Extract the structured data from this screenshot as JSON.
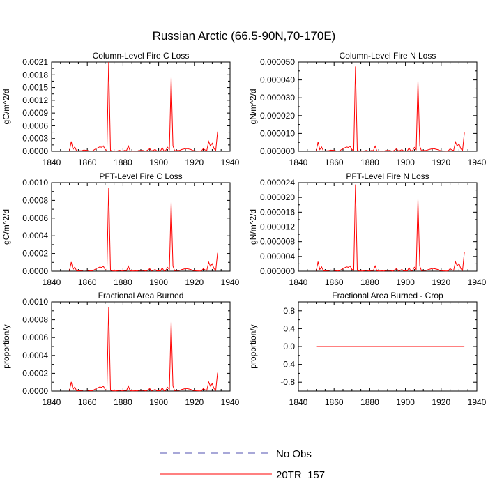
{
  "figure": {
    "title": "Russian Arctic (66.5-90N,70-170E)"
  },
  "legend": {
    "entries": [
      {
        "label": "No Obs",
        "color": "#5050b0",
        "dash": true
      },
      {
        "label": "20TR_157",
        "color": "#ff0000",
        "dash": false
      }
    ]
  },
  "chart_data": [
    {
      "type": "line",
      "title": "Column-Level Fire C Loss",
      "ylabel": "gC/m^2/d",
      "xlim": [
        1840,
        1940
      ],
      "ylim": [
        0,
        0.0021
      ],
      "xticks": [
        1840,
        1860,
        1880,
        1900,
        1920,
        1940
      ],
      "yticks": [
        "0.0000",
        "0.0003",
        "0.0006",
        "0.0009",
        "0.0012",
        "0.0015",
        "0.0018",
        "0.0021"
      ],
      "ytick_values": [
        0,
        0.0003,
        0.0006,
        0.0009,
        0.0012,
        0.0015,
        0.0018,
        0.0021
      ],
      "series": [
        {
          "name": "20TR_157",
          "color": "#ff0000",
          "scale": 0.0021
        }
      ]
    },
    {
      "type": "line",
      "title": "Column-Level Fire N Loss",
      "ylabel": "gN/m^2/d",
      "xlim": [
        1840,
        1940
      ],
      "ylim": [
        0,
        5e-05
      ],
      "xticks": [
        1840,
        1860,
        1880,
        1900,
        1920,
        1940
      ],
      "yticks": [
        "0.000000",
        "0.000010",
        "0.000020",
        "0.000030",
        "0.000040",
        "0.000050"
      ],
      "ytick_values": [
        0,
        1e-05,
        2e-05,
        3e-05,
        4e-05,
        5e-05
      ],
      "series": [
        {
          "name": "20TR_157",
          "color": "#ff0000",
          "scale": 4.75e-05
        }
      ]
    },
    {
      "type": "line",
      "title": "PFT-Level Fire C Loss",
      "ylabel": "gC/m^2/d",
      "xlim": [
        1840,
        1940
      ],
      "ylim": [
        0,
        0.001
      ],
      "xticks": [
        1840,
        1860,
        1880,
        1900,
        1920,
        1940
      ],
      "yticks": [
        "0.0000",
        "0.0002",
        "0.0004",
        "0.0006",
        "0.0008",
        "0.0010"
      ],
      "ytick_values": [
        0,
        0.0002,
        0.0004,
        0.0006,
        0.0008,
        0.001
      ],
      "series": [
        {
          "name": "20TR_157",
          "color": "#ff0000",
          "scale": 0.00094
        }
      ]
    },
    {
      "type": "line",
      "title": "PFT-Level Fire N Loss",
      "ylabel": "gN/m^2/d",
      "xlim": [
        1840,
        1940
      ],
      "ylim": [
        0,
        2.4e-05
      ],
      "xticks": [
        1840,
        1860,
        1880,
        1900,
        1920,
        1940
      ],
      "yticks": [
        "0.000000",
        "0.000004",
        "0.000008",
        "0.000012",
        "0.000016",
        "0.000020",
        "0.000024"
      ],
      "ytick_values": [
        0,
        4e-06,
        8e-06,
        1.2e-05,
        1.6e-05,
        2e-05,
        2.4e-05
      ],
      "series": [
        {
          "name": "20TR_157",
          "color": "#ff0000",
          "scale": 2.35e-05
        }
      ]
    },
    {
      "type": "line",
      "title": "Fractional Area Burned",
      "ylabel": "proportion/y",
      "xlim": [
        1840,
        1940
      ],
      "ylim": [
        0,
        0.001
      ],
      "xticks": [
        1840,
        1860,
        1880,
        1900,
        1920,
        1940
      ],
      "yticks": [
        "0.0000",
        "0.0002",
        "0.0004",
        "0.0006",
        "0.0008",
        "0.0010"
      ],
      "ytick_values": [
        0,
        0.0002,
        0.0004,
        0.0006,
        0.0008,
        0.001
      ],
      "series": [
        {
          "name": "20TR_157",
          "color": "#ff0000",
          "scale": 0.00094
        }
      ]
    },
    {
      "type": "line",
      "title": "Fractional Area Burned - Crop",
      "ylabel": "proportion/y",
      "xlim": [
        1840,
        1940
      ],
      "ylim": [
        -1,
        1
      ],
      "xticks": [
        1840,
        1860,
        1880,
        1900,
        1920,
        1940
      ],
      "yticks": [
        "-0.8",
        "-0.4",
        "0.0",
        "0.4",
        "0.8"
      ],
      "ytick_values": [
        -0.8,
        -0.4,
        0,
        0.4,
        0.8
      ],
      "series": [
        {
          "name": "20TR_157",
          "color": "#ff0000",
          "constant": 0,
          "x_range": [
            1850,
            1933
          ]
        }
      ]
    }
  ],
  "shape_profile": {
    "x": [
      1850,
      1851,
      1852,
      1853,
      1854,
      1855,
      1856,
      1857,
      1858,
      1859,
      1860,
      1861,
      1862,
      1863,
      1864,
      1865,
      1866,
      1867,
      1868,
      1869,
      1870,
      1871,
      1872,
      1873,
      1874,
      1875,
      1876,
      1877,
      1878,
      1879,
      1880,
      1881,
      1882,
      1883,
      1884,
      1885,
      1886,
      1887,
      1888,
      1889,
      1890,
      1891,
      1892,
      1893,
      1894,
      1895,
      1896,
      1897,
      1898,
      1899,
      1900,
      1901,
      1902,
      1903,
      1904,
      1905,
      1906,
      1907,
      1908,
      1909,
      1910,
      1911,
      1912,
      1913,
      1914,
      1915,
      1916,
      1917,
      1918,
      1919,
      1920,
      1921,
      1922,
      1923,
      1924,
      1925,
      1926,
      1927,
      1928,
      1929,
      1930,
      1931,
      1932,
      1933
    ],
    "y": [
      0.005,
      0.11,
      0.02,
      0.05,
      0.005,
      0.004,
      0.006,
      0.007,
      0.013,
      0.012,
      0.01,
      0.005,
      0.003,
      0.005,
      0.018,
      0.03,
      0.04,
      0.05,
      0.045,
      0.06,
      0.02,
      0.01,
      1.0,
      0.01,
      0.004,
      0.003,
      0.002,
      0.005,
      0.01,
      0.004,
      0.003,
      0.01,
      0.007,
      0.06,
      0.005,
      0.002,
      0.003,
      0.004,
      0.002,
      0.01,
      0.008,
      0.01,
      0.005,
      0.002,
      0.015,
      0.03,
      0.005,
      0.01,
      0.02,
      0.004,
      0.005,
      0.003,
      0.04,
      0.003,
      0.01,
      0.045,
      0.02,
      0.83,
      0.06,
      0.005,
      0.01,
      0.008,
      0.012,
      0.02,
      0.025,
      0.03,
      0.03,
      0.025,
      0.02,
      0.01,
      0.006,
      0.004,
      0.003,
      0.002,
      0.004,
      0.03,
      0.015,
      0.01,
      0.11,
      0.06,
      0.09,
      0.03,
      0.01,
      0.22
    ]
  }
}
